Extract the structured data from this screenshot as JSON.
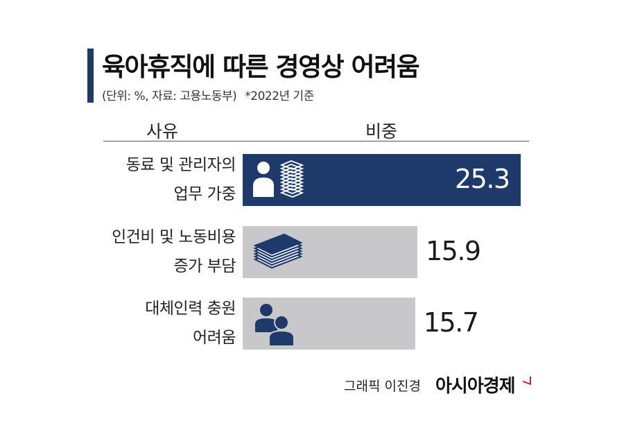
{
  "title": "육아휴직에 따른 경영상 어려움",
  "subtitle": {
    "unit_source": "(단위: %, 자료: 고용노동부)",
    "note": "*2022년 기준"
  },
  "columns": {
    "reason": "사유",
    "share": "비중"
  },
  "chart_data": {
    "type": "bar",
    "orientation": "horizontal",
    "title": "육아휴직에 따른 경영상 어려움",
    "categories": [
      [
        "동료 및 관리자의",
        "업무 가중"
      ],
      [
        "인건비 및 노동비용",
        "증가 부담"
      ],
      [
        "대체인력 충원",
        "어려움"
      ]
    ],
    "values": [
      25.3,
      15.9,
      15.7
    ],
    "value_labels": [
      "25.3",
      "15.9",
      "15.7"
    ],
    "unit": "%",
    "icons": [
      "person-with-papers-icon",
      "money-stack-icon",
      "two-people-icon"
    ],
    "colors": {
      "highlight": "#1e3a6b",
      "default": "#c8c8ca",
      "icon_light": "#1e3a6b",
      "icon_dark": "#ffffff"
    }
  },
  "footer": {
    "credit": "그래픽 이진경",
    "brand": "아시아경제",
    "brand_accent": "#d21f26"
  }
}
